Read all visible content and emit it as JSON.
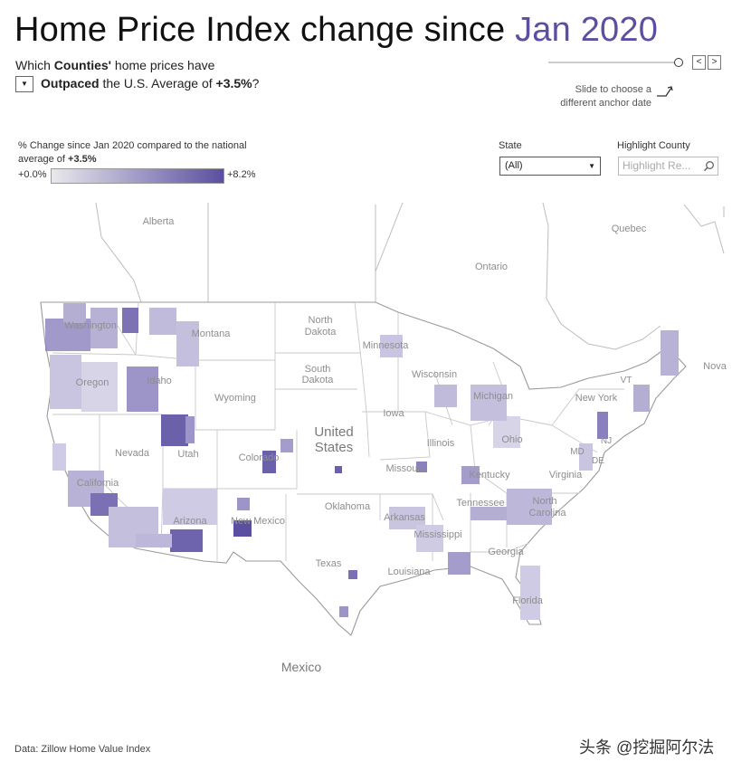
{
  "header": {
    "title_prefix": "Home Price Index change since ",
    "title_date": "Jan 2020",
    "subtitle_line1_a": "Which ",
    "subtitle_line1_b": "Counties'",
    "subtitle_line1_c": " home prices have",
    "subtitle_dropdown_value": "Outpaced",
    "subtitle_line2_mid": " the U.S. Average of ",
    "subtitle_avg": "+3.5%",
    "subtitle_end": "?"
  },
  "slider": {
    "position": 1.0,
    "hint": "Slide to choose a different anchor date",
    "prev_label": "<",
    "next_label": ">"
  },
  "legend": {
    "title_a": "% Change since Jan 2020 compared to the national average of ",
    "title_b": "+3.5%",
    "min_label": "+0.0%",
    "max_label": "+8.2%",
    "color_low": "#e8e8ec",
    "color_high": "#5a4fa0"
  },
  "filters": {
    "state_label": "State",
    "state_value": "(All)",
    "highlight_label": "Highlight County",
    "highlight_placeholder": "Highlight Re..."
  },
  "map": {
    "labels": {
      "alberta": "Alberta",
      "quebec": "Quebec",
      "ontario": "Ontario",
      "nova": "Nova",
      "washington": "Washington",
      "montana": "Montana",
      "north_dakota_1": "North",
      "north_dakota_2": "Dakota",
      "minnesota": "Minnesota",
      "oregon": "Oregon",
      "idaho": "Idaho",
      "wyoming": "Wyoming",
      "south_dakota_1": "South",
      "south_dakota_2": "Dakota",
      "wisconsin": "Wisconsin",
      "michigan": "Michigan",
      "new_york": "New York",
      "vt": "VT",
      "iowa": "Iowa",
      "us_1": "United",
      "us_2": "States",
      "nevada": "Nevada",
      "utah": "Utah",
      "colorado": "Colorado",
      "illinois": "Illinois",
      "ohio": "Ohio",
      "nj": "NJ",
      "md": "MD",
      "de": "DE",
      "missouri": "Missouri",
      "kentucky": "Kentucky",
      "virginia": "Virginia",
      "california": "California",
      "arizona": "Arizona",
      "new_mexico": "New Mexico",
      "oklahoma": "Oklahoma",
      "arkansas": "Arkansas",
      "tennessee": "Tennessee",
      "north_carolina_1": "North",
      "north_carolina_2": "Carolina",
      "mississippi": "Mississippi",
      "georgia": "Georgia",
      "texas": "Texas",
      "louisiana": "Louisiana",
      "florida": "Florida",
      "mexico": "Mexico"
    }
  },
  "footer": {
    "source": "Data: Zillow Home Value Index",
    "watermark": "头条 @挖掘阿尔法"
  }
}
